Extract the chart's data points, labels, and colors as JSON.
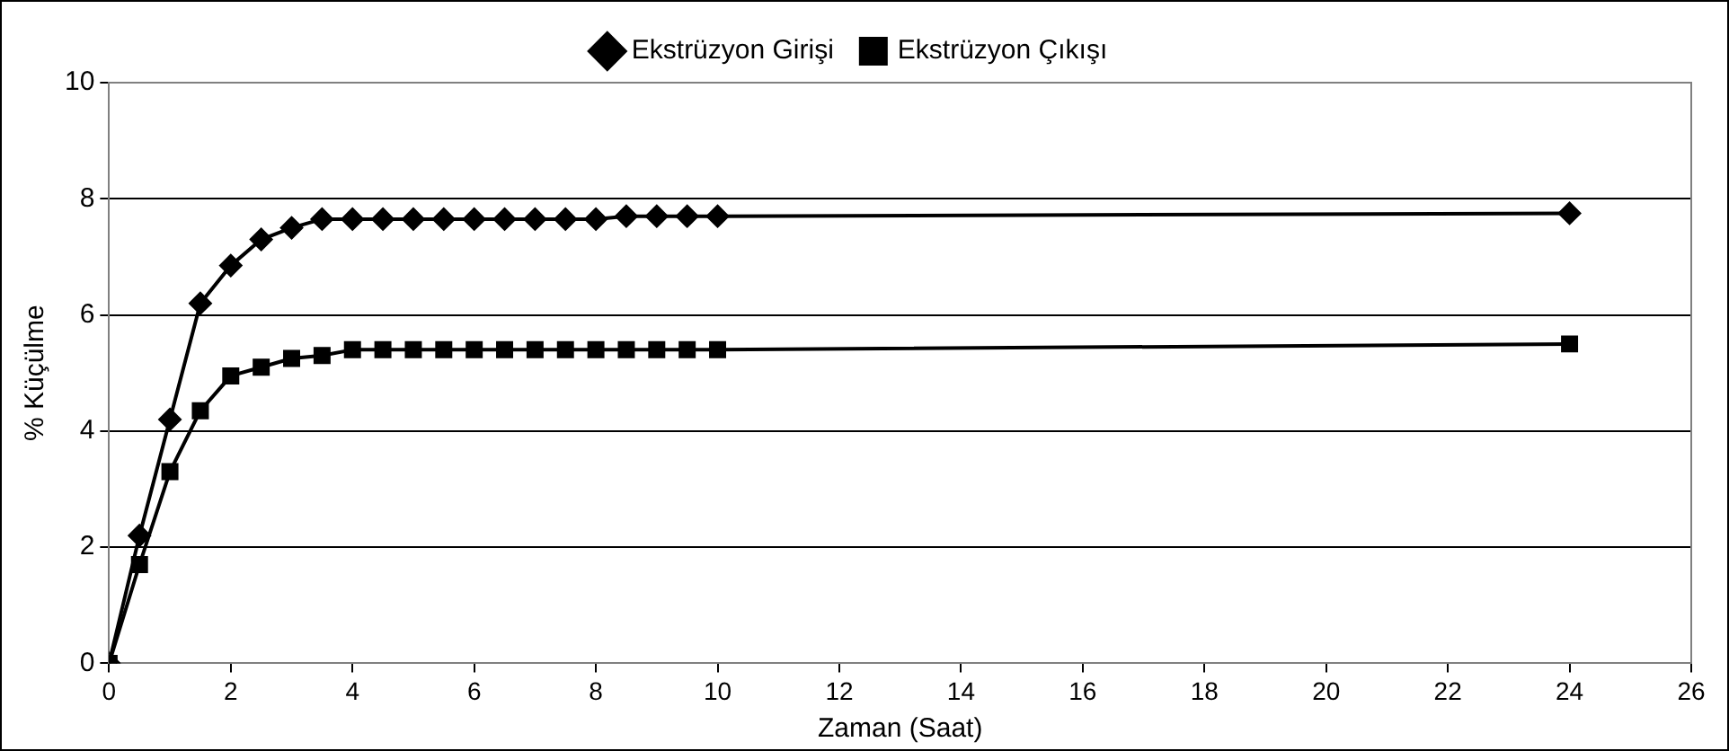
{
  "chart_data": {
    "type": "line",
    "xlabel": "Zaman (Saat)",
    "ylabel": "% Küçülme",
    "x": [
      0,
      0.5,
      1,
      1.5,
      2,
      2.5,
      3,
      3.5,
      4,
      4.5,
      5,
      5.5,
      6,
      6.5,
      7,
      7.5,
      8,
      8.5,
      9,
      9.5,
      10,
      24
    ],
    "series": [
      {
        "name": "Ekstrüzyon Girişi",
        "color": "#000000",
        "marker": "diamond",
        "values": [
          0,
          2.2,
          4.2,
          6.2,
          6.85,
          7.3,
          7.5,
          7.65,
          7.65,
          7.65,
          7.65,
          7.65,
          7.65,
          7.65,
          7.65,
          7.65,
          7.65,
          7.7,
          7.7,
          7.7,
          7.7,
          7.75
        ]
      },
      {
        "name": "Ekstrüzyon Çıkışı",
        "color": "#000000",
        "marker": "square",
        "values": [
          0,
          1.7,
          3.3,
          4.35,
          4.95,
          5.1,
          5.25,
          5.3,
          5.4,
          5.4,
          5.4,
          5.4,
          5.4,
          5.4,
          5.4,
          5.4,
          5.4,
          5.4,
          5.4,
          5.4,
          5.4,
          5.5
        ]
      }
    ],
    "xlim": [
      0,
      26
    ],
    "xticks": [
      0,
      2,
      4,
      6,
      8,
      10,
      12,
      14,
      16,
      18,
      20,
      22,
      24,
      26
    ],
    "ylim": [
      0,
      10
    ],
    "yticks": [
      0,
      2,
      4,
      6,
      8,
      10
    ],
    "grid": "y",
    "legend": "top",
    "line_style": "solid"
  }
}
